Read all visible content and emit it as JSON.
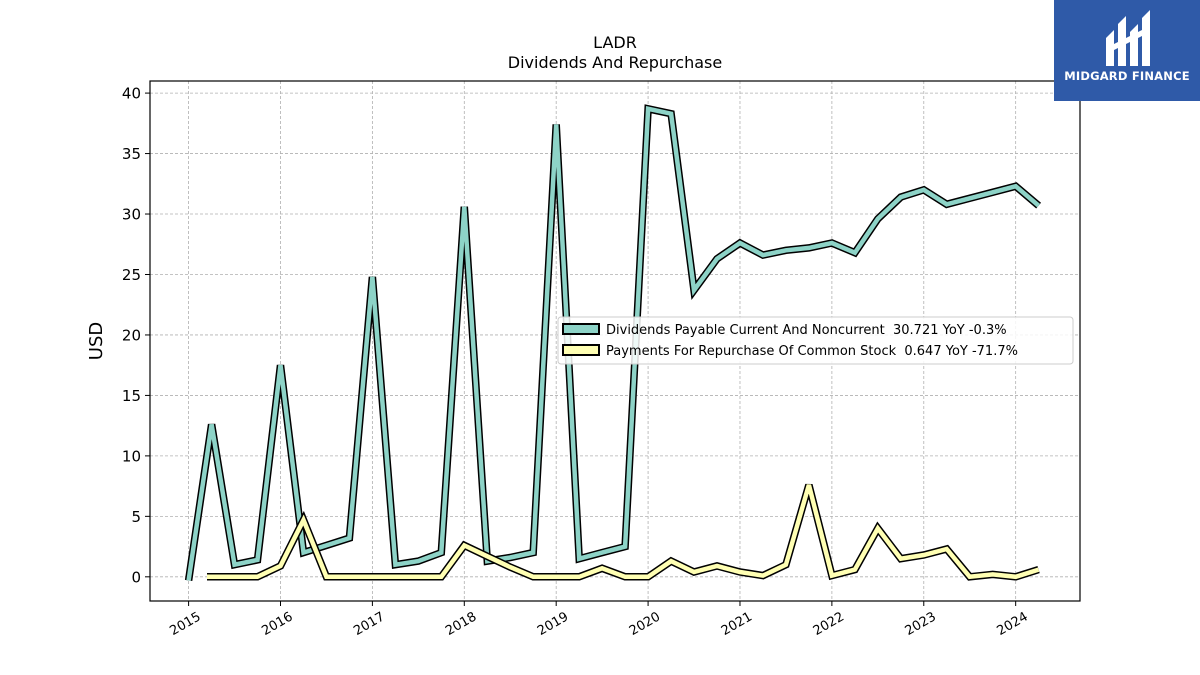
{
  "chart_data": {
    "type": "line",
    "title": "LADR",
    "subtitle": "Dividends And Repurchase",
    "ylabel": "USD",
    "xlabel": "",
    "ylim": [
      -2,
      41
    ],
    "xlim": [
      2014.58,
      2024.7
    ],
    "yticks": [
      0,
      5,
      10,
      15,
      20,
      25,
      30,
      35,
      40
    ],
    "xticks": [
      2015,
      2016,
      2017,
      2018,
      2019,
      2020,
      2021,
      2022,
      2023,
      2024
    ],
    "xtick_labels": [
      "2015",
      "2016",
      "2017",
      "2018",
      "2019",
      "2020",
      "2021",
      "2022",
      "2023",
      "2024"
    ],
    "grid": true,
    "legend_position": "center-right",
    "series": [
      {
        "name": "Dividends Payable Current And Noncurrent  30.721 YoY -0.3%",
        "color": "#8dd3c7",
        "x": [
          2015.0,
          2015.25,
          2015.5,
          2015.75,
          2016.0,
          2016.25,
          2016.5,
          2016.75,
          2017.0,
          2017.25,
          2017.5,
          2017.75,
          2018.0,
          2018.25,
          2018.5,
          2018.75,
          2019.0,
          2019.25,
          2019.5,
          2019.75,
          2020.0,
          2020.25,
          2020.5,
          2020.75,
          2021.0,
          2021.25,
          2021.5,
          2021.75,
          2022.0,
          2022.25,
          2022.5,
          2022.75,
          2023.0,
          2023.25,
          2023.5,
          2023.75,
          2024.0,
          2024.25
        ],
        "values": [
          -0.3,
          12.6,
          1.0,
          1.4,
          17.5,
          2.0,
          2.6,
          3.2,
          24.8,
          1.0,
          1.3,
          2.0,
          30.6,
          1.3,
          1.6,
          2.0,
          37.4,
          1.5,
          2.0,
          2.5,
          38.7,
          38.3,
          23.7,
          26.3,
          27.6,
          26.6,
          27.0,
          27.2,
          27.6,
          26.8,
          29.6,
          31.4,
          32.0,
          30.8,
          31.3,
          31.8,
          32.3,
          30.7
        ]
      },
      {
        "name": "Payments For Repurchase Of Common Stock  0.647 YoY -71.7%",
        "color": "#ffffb3",
        "x": [
          2015.2,
          2015.5,
          2015.75,
          2016.0,
          2016.25,
          2016.5,
          2016.75,
          2017.0,
          2017.25,
          2017.5,
          2017.75,
          2018.0,
          2018.25,
          2018.5,
          2018.75,
          2019.0,
          2019.25,
          2019.5,
          2019.75,
          2020.0,
          2020.25,
          2020.5,
          2020.75,
          2021.0,
          2021.25,
          2021.5,
          2021.75,
          2022.0,
          2022.25,
          2022.5,
          2022.75,
          2023.0,
          2023.25,
          2023.5,
          2023.75,
          2024.0,
          2024.25
        ],
        "values": [
          0.0,
          0.0,
          0.0,
          0.9,
          4.7,
          0.0,
          0.0,
          0.0,
          0.0,
          0.0,
          0.0,
          2.6,
          1.7,
          0.8,
          0.0,
          0.0,
          0.0,
          0.7,
          0.0,
          0.0,
          1.3,
          0.4,
          0.9,
          0.4,
          0.1,
          1.0,
          7.6,
          0.1,
          0.6,
          4.0,
          1.5,
          1.8,
          2.3,
          0.0,
          0.2,
          0.0,
          0.6
        ]
      }
    ]
  },
  "logo": {
    "text": "MIDGARD FINANCE",
    "color": "#2f5aa8"
  }
}
